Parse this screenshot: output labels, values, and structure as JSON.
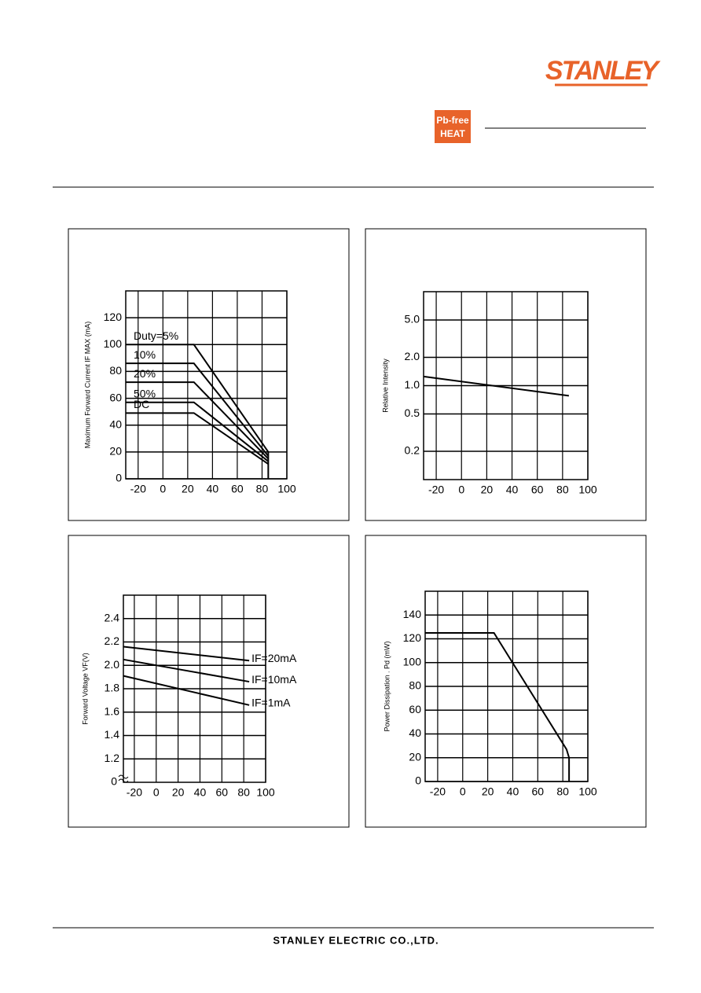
{
  "header": {
    "logo": "STANLEY",
    "badge": [
      "Pb-free",
      "HEAT"
    ]
  },
  "footer": "STANLEY ELECTRIC CO.,LTD.",
  "chart_data": [
    {
      "type": "line",
      "ylabel": "Maximum Forward Current  IF MAX  (mA)",
      "xlim": [
        -30,
        100
      ],
      "xticks": [
        -20,
        0,
        20,
        40,
        60,
        80,
        100
      ],
      "ylim": [
        0,
        140
      ],
      "yticks": [
        0,
        20,
        40,
        60,
        80,
        100,
        120
      ],
      "grid": true,
      "color": "#000000",
      "series": [
        {
          "name": "Duty=5%",
          "x": [
            -30,
            25,
            85,
            85
          ],
          "values": [
            100,
            100,
            20,
            0
          ]
        },
        {
          "name": "10%",
          "x": [
            -30,
            25,
            85
          ],
          "values": [
            86,
            86,
            17
          ]
        },
        {
          "name": "20%",
          "x": [
            -30,
            25,
            85
          ],
          "values": [
            72,
            72,
            15
          ]
        },
        {
          "name": "50%",
          "x": [
            -30,
            25,
            85
          ],
          "values": [
            57,
            57,
            13
          ]
        },
        {
          "name": "DC",
          "x": [
            -30,
            25,
            85
          ],
          "values": [
            49,
            49,
            11
          ]
        }
      ]
    },
    {
      "type": "line",
      "ylabel": "Relative Intensity",
      "xlim": [
        -30,
        100
      ],
      "xticks": [
        -20,
        0,
        20,
        40,
        60,
        80,
        100
      ],
      "ylim": [
        0.1,
        10
      ],
      "log_y": true,
      "yticks": [
        0.2,
        0.5,
        {
          "value": 1,
          "label": "1.0"
        },
        {
          "value": 2,
          "label": "2.0"
        },
        {
          "value": 5,
          "label": "5.0"
        }
      ],
      "grid": true,
      "color": "#000000",
      "series": [
        {
          "name": null,
          "x": [
            -30,
            85
          ],
          "values": [
            1.25,
            0.78
          ]
        }
      ]
    },
    {
      "type": "line",
      "ylabel": "Forward Voltage VF(V)",
      "xlim": [
        -30,
        100
      ],
      "xticks": [
        -20,
        0,
        20,
        40,
        60,
        80,
        100
      ],
      "ylim": [
        1.0,
        2.6
      ],
      "yticks": [
        1.2,
        1.4,
        1.6,
        1.8,
        {
          "value": 2,
          "label": "2.0"
        },
        2.2,
        2.4
      ],
      "y_break_label": "0",
      "grid": true,
      "color": "#000000",
      "series": [
        {
          "name": "IF=20mA",
          "x": [
            -30,
            85
          ],
          "values": [
            2.16,
            2.04
          ]
        },
        {
          "name": "IF=10mA",
          "x": [
            -30,
            85
          ],
          "values": [
            2.05,
            1.86
          ]
        },
        {
          "name": "IF=1mA",
          "x": [
            -30,
            85
          ],
          "values": [
            1.91,
            1.66
          ]
        }
      ]
    },
    {
      "type": "line",
      "ylabel": "Power Dissipation . Pd (mW)",
      "xlim": [
        -30,
        100
      ],
      "xticks": [
        -20,
        0,
        20,
        40,
        60,
        80,
        100
      ],
      "ylim": [
        0,
        160
      ],
      "yticks": [
        0,
        20,
        40,
        60,
        80,
        100,
        120,
        140
      ],
      "grid": true,
      "color": "#000000",
      "series": [
        {
          "name": null,
          "x": [
            -30,
            25,
            83,
            85,
            85
          ],
          "values": [
            125,
            125,
            27,
            20,
            0
          ]
        }
      ]
    }
  ]
}
